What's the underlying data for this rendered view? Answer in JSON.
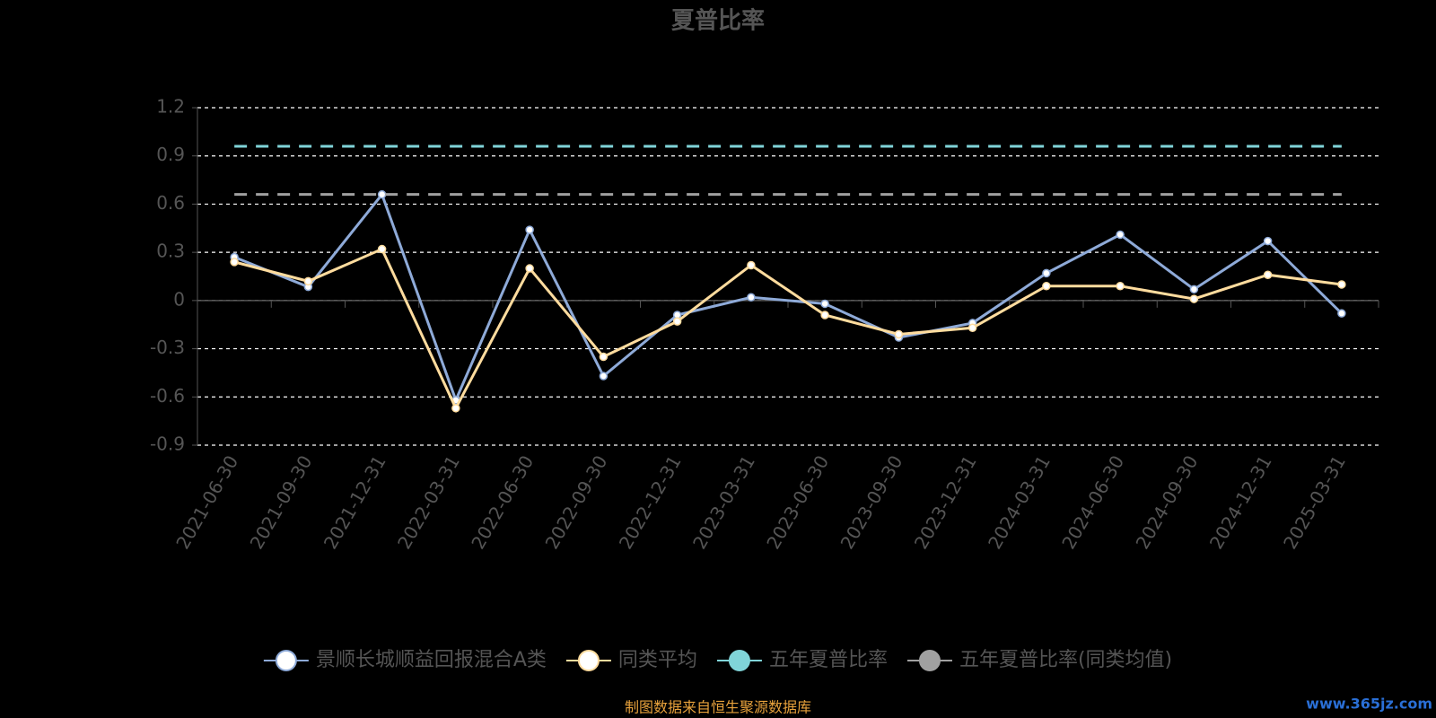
{
  "chart_data": {
    "type": "line",
    "title": "夏普比率",
    "categories": [
      "2021-06-30",
      "2021-09-30",
      "2021-12-31",
      "2022-03-31",
      "2022-06-30",
      "2022-09-30",
      "2022-12-31",
      "2023-03-31",
      "2023-06-30",
      "2023-09-30",
      "2023-12-31",
      "2024-03-31",
      "2024-06-30",
      "2024-09-30",
      "2024-12-31",
      "2025-03-31"
    ],
    "series": [
      {
        "name": "景顺长城顺益回报混合A类",
        "color": "#8eaad8",
        "values": [
          0.27,
          0.085,
          0.66,
          -0.62,
          0.44,
          -0.47,
          -0.09,
          0.02,
          -0.02,
          -0.23,
          -0.14,
          0.17,
          0.41,
          0.07,
          0.37,
          -0.08
        ]
      },
      {
        "name": "同类平均",
        "color": "#ffdc9e",
        "values": [
          0.24,
          0.12,
          0.32,
          -0.67,
          0.2,
          -0.35,
          -0.13,
          0.22,
          -0.09,
          -0.21,
          -0.17,
          0.09,
          0.09,
          0.01,
          0.16,
          0.1
        ]
      },
      {
        "name": "五年夏普比率",
        "color": "#80d4d8",
        "values": [
          0.96,
          0.96,
          0.96,
          0.96,
          0.96,
          0.96,
          0.96,
          0.96,
          0.96,
          0.96,
          0.96,
          0.96,
          0.96,
          0.96,
          0.96,
          0.96
        ]
      },
      {
        "name": "五年夏普比率(同类均值)",
        "color": "#a0a0a0",
        "values": [
          0.66,
          0.66,
          0.66,
          0.66,
          0.66,
          0.66,
          0.66,
          0.66,
          0.66,
          0.66,
          0.66,
          0.66,
          0.66,
          0.66,
          0.66,
          0.66
        ]
      }
    ],
    "ylim": [
      -0.9,
      1.2
    ],
    "yticks": [
      1.2,
      0.9,
      0.6,
      0.3,
      0,
      -0.3,
      -0.6,
      -0.9
    ],
    "grid": true,
    "source": "制图数据来自恒生聚源数据库",
    "watermark": "www.365jz.com"
  }
}
